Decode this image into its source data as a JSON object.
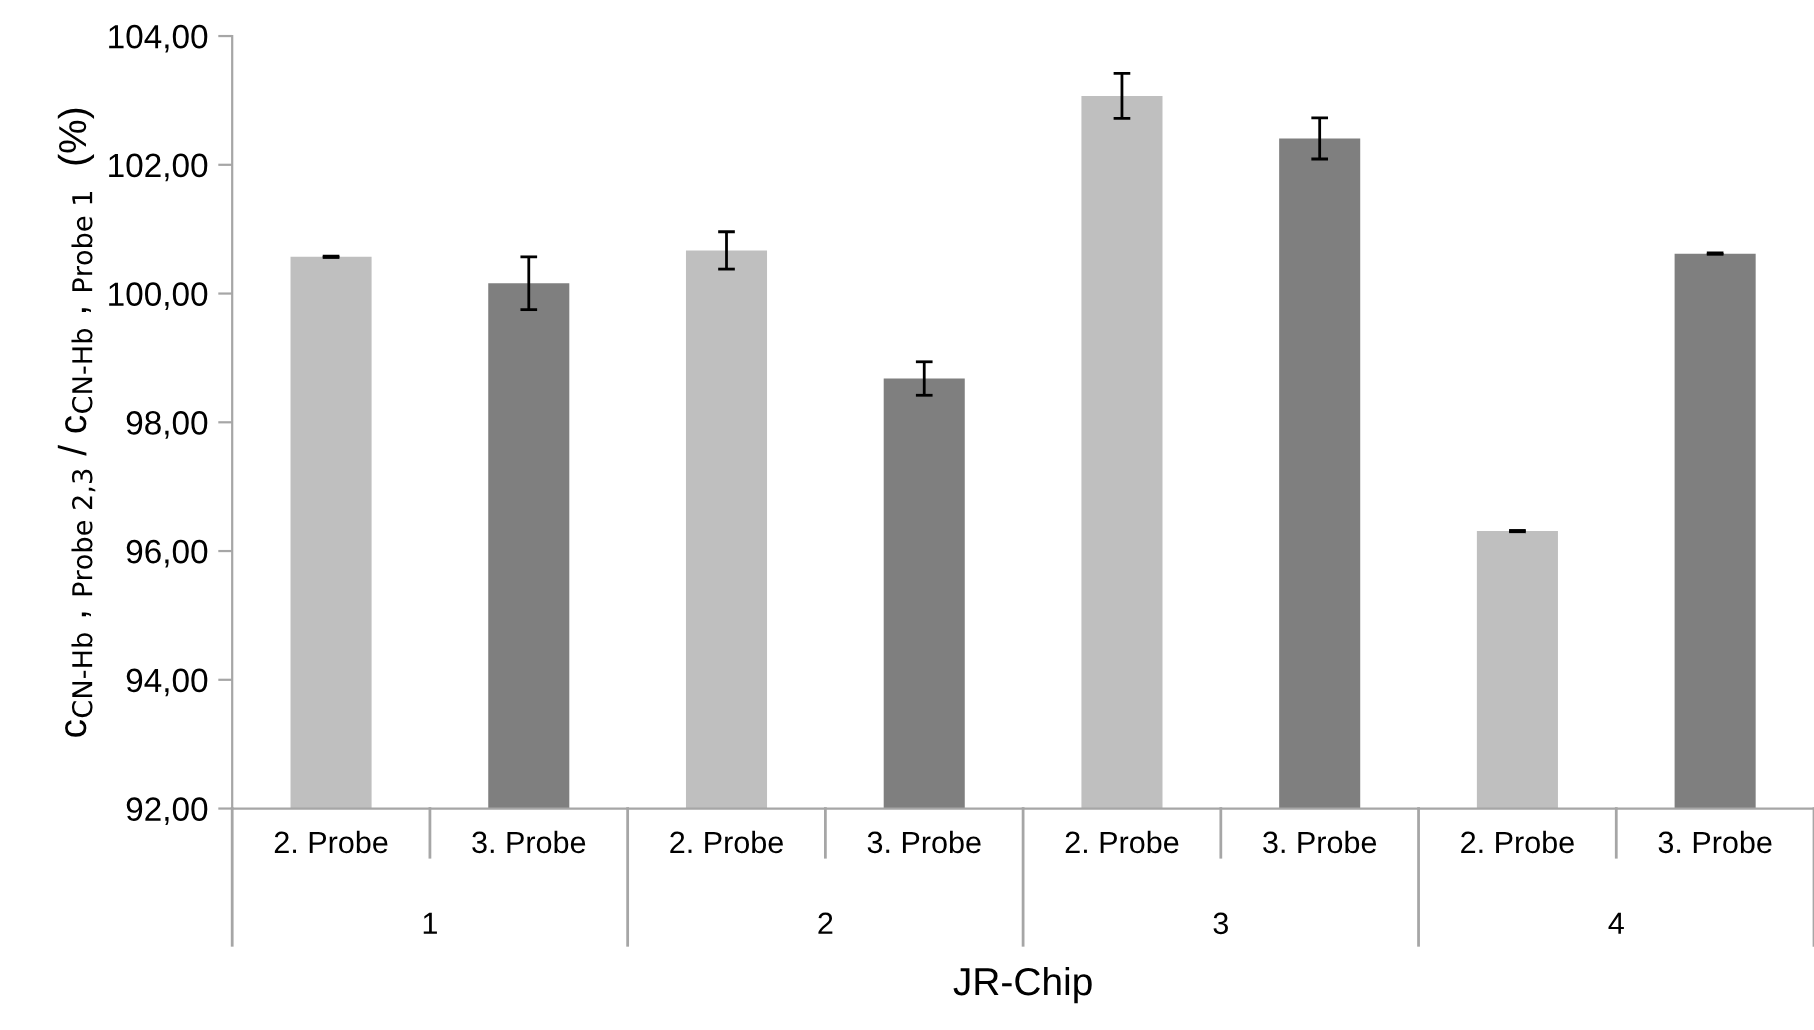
{
  "chart_data": {
    "type": "bar",
    "ylabel": "c$_{CN-Hb}$ , $_{Probe 2,3}$ / c$_{CN-Hb}$ , $_{Probe 1}$  (%)",
    "xlabel": "JR-Chip",
    "categories": [
      "2. Probe",
      "3. Probe",
      "2. Probe",
      "3. Probe",
      "2. Probe",
      "3. Probe",
      "2. Probe",
      "3. Probe"
    ],
    "values": [
      100.57,
      100.16,
      100.67,
      98.68,
      103.07,
      102.41,
      96.31,
      100.62
    ],
    "errors": [
      0.01,
      0.41,
      0.29,
      0.26,
      0.35,
      0.32,
      0.01,
      0.01
    ],
    "colors": [
      "#bfbfbf",
      "#7f7f7f",
      "#bfbfbf",
      "#7f7f7f",
      "#bfbfbf",
      "#7f7f7f",
      "#bfbfbf",
      "#7f7f7f"
    ],
    "annotations": [
      "1",
      "2",
      "3",
      "4"
    ],
    "ylim": [
      92,
      104
    ],
    "yticks": [
      {
        "value": 92,
        "label": "92,00"
      },
      {
        "value": 94,
        "label": "94,00"
      },
      {
        "value": 96,
        "label": "96,00"
      },
      {
        "value": 98,
        "label": "98,00"
      },
      {
        "value": 100,
        "label": "100,00"
      },
      {
        "value": 102,
        "label": "102,00"
      },
      {
        "value": 104,
        "label": "104,00"
      }
    ],
    "grid": false,
    "legend": false
  }
}
